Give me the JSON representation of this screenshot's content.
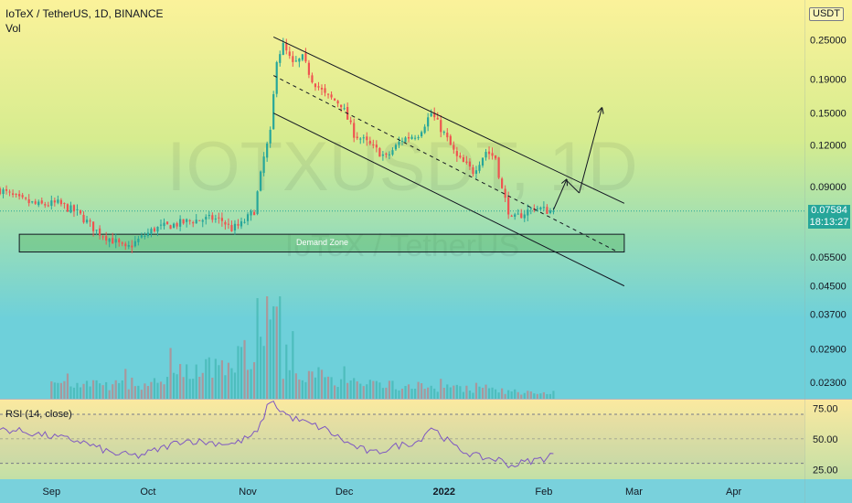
{
  "header": {
    "symbol_line": "IoTeX / TetherUS, 1D, BINANCE",
    "volume_label": "Vol",
    "currency": "USDT"
  },
  "watermark": {
    "symbol": "IOTXUSDT, 1D",
    "description": "IoTeX / TetherUS"
  },
  "price_tag": {
    "price": "0.07584",
    "countdown": "18:13:27"
  },
  "annotations": {
    "demand_zone": "Demand Zone"
  },
  "colors": {
    "up": "#26a69a",
    "down": "#ef5350",
    "rsi_line": "#7e57c2",
    "rsi_band": "#7e57c2",
    "zone_fill": "#4caf50",
    "price_line": "#26a69a"
  },
  "chart_data": [
    {
      "type": "candlestick",
      "title": "IoTeX / TetherUS, 1D, BINANCE",
      "scale": "log",
      "y_ticks": [
        "0.25000",
        "0.19000",
        "0.15000",
        "0.12000",
        "0.09000",
        "0.05500",
        "0.04500",
        "0.03700",
        "0.02900",
        "0.02300"
      ],
      "y_tick_values": [
        0.25,
        0.19,
        0.15,
        0.12,
        0.09,
        0.055,
        0.045,
        0.037,
        0.029,
        0.023
      ],
      "x_ticks": [
        "Sep",
        "Oct",
        "Nov",
        "Dec",
        "2022",
        "Feb",
        "Mar",
        "Apr"
      ],
      "x_tick_dates": [
        "2021-09-01",
        "2021-10-01",
        "2021-11-01",
        "2021-12-01",
        "2022-01-01",
        "2022-02-01",
        "2022-03-01",
        "2022-04-01"
      ],
      "x_range": [
        "2021-08-16",
        "2022-04-23"
      ],
      "y_range": [
        0.0205,
        0.33
      ],
      "last_price": 0.07584,
      "grid": false,
      "legend": "none",
      "close_series": {
        "dates": [
          "2021-08-16",
          "2021-08-22",
          "2021-08-28",
          "2021-09-03",
          "2021-09-09",
          "2021-09-15",
          "2021-09-21",
          "2021-09-24",
          "2021-09-28",
          "2021-10-03",
          "2021-10-09",
          "2021-10-15",
          "2021-10-21",
          "2021-10-24",
          "2021-10-27",
          "2021-10-30",
          "2021-11-03",
          "2021-11-06",
          "2021-11-08",
          "2021-11-10",
          "2021-11-12",
          "2021-11-15",
          "2021-11-18",
          "2021-11-21",
          "2021-11-25",
          "2021-11-30",
          "2021-12-04",
          "2021-12-09",
          "2021-12-14",
          "2021-12-19",
          "2021-12-24",
          "2021-12-28",
          "2022-01-01",
          "2022-01-05",
          "2022-01-10",
          "2022-01-14",
          "2022-01-17",
          "2022-01-19",
          "2022-01-22",
          "2022-01-26",
          "2022-01-29",
          "2022-02-02",
          "2022-02-04"
        ],
        "values": [
          0.088,
          0.082,
          0.079,
          0.08,
          0.075,
          0.066,
          0.061,
          0.058,
          0.062,
          0.067,
          0.069,
          0.071,
          0.072,
          0.071,
          0.067,
          0.069,
          0.076,
          0.11,
          0.13,
          0.22,
          0.24,
          0.21,
          0.22,
          0.19,
          0.17,
          0.16,
          0.13,
          0.12,
          0.11,
          0.125,
          0.13,
          0.15,
          0.13,
          0.11,
          0.1,
          0.115,
          0.11,
          0.088,
          0.071,
          0.075,
          0.078,
          0.076,
          0.0758
        ]
      },
      "annotations": [
        {
          "type": "rectangle",
          "label": "Demand Zone",
          "from": "2021-08-22",
          "to": "2022-02-26",
          "price_low": 0.057,
          "price_high": 0.0645
        },
        {
          "type": "channel_upper",
          "from": [
            "2021-11-09",
            0.255
          ],
          "to": [
            "2022-02-26",
            0.08
          ]
        },
        {
          "type": "channel_middle_dashed",
          "from": [
            "2021-11-09",
            0.195
          ],
          "to": [
            "2022-02-24",
            0.057
          ]
        },
        {
          "type": "channel_lower",
          "from": [
            "2021-11-09",
            0.15
          ],
          "to": [
            "2022-02-26",
            0.045
          ]
        },
        {
          "type": "projection_path",
          "points": [
            [
              "2022-02-04",
              0.0765
            ],
            [
              "2022-02-08",
              0.094
            ],
            [
              "2022-02-12",
              0.086
            ],
            [
              "2022-02-19",
              0.155
            ]
          ]
        }
      ]
    },
    {
      "type": "bar",
      "title": "Vol",
      "note": "volume histogram, colored by candle direction",
      "relative_values_key_dates": [
        "2021-09-01",
        "2021-10-01",
        "2021-11-06",
        "2021-11-09",
        "2021-11-12",
        "2021-12-01",
        "2022-01-01",
        "2022-01-20",
        "2022-02-04"
      ],
      "relative_values": [
        0.15,
        0.15,
        0.55,
        1.0,
        0.35,
        0.18,
        0.12,
        0.08,
        0.05
      ]
    },
    {
      "type": "line",
      "title": "RSI (14, close)",
      "y_ticks": [
        "75.00",
        "50.00",
        "25.00"
      ],
      "y_tick_values": [
        75,
        50,
        25
      ],
      "band": [
        30,
        70
      ],
      "midline": 50,
      "y_range": [
        17,
        82
      ],
      "dates": [
        "2021-08-16",
        "2021-08-23",
        "2021-09-01",
        "2021-09-10",
        "2021-09-20",
        "2021-09-28",
        "2021-10-05",
        "2021-10-12",
        "2021-10-20",
        "2021-10-28",
        "2021-11-04",
        "2021-11-08",
        "2021-11-10",
        "2021-11-14",
        "2021-11-18",
        "2021-11-25",
        "2021-12-03",
        "2021-12-10",
        "2021-12-17",
        "2021-12-24",
        "2021-12-28",
        "2022-01-05",
        "2022-01-12",
        "2022-01-18",
        "2022-01-22",
        "2022-01-26",
        "2022-02-01",
        "2022-02-04"
      ],
      "values": [
        58,
        56,
        52,
        48,
        38,
        36,
        42,
        49,
        47,
        46,
        55,
        82,
        76,
        68,
        64,
        58,
        45,
        38,
        44,
        48,
        60,
        42,
        35,
        33,
        28,
        31,
        34,
        38
      ]
    }
  ]
}
